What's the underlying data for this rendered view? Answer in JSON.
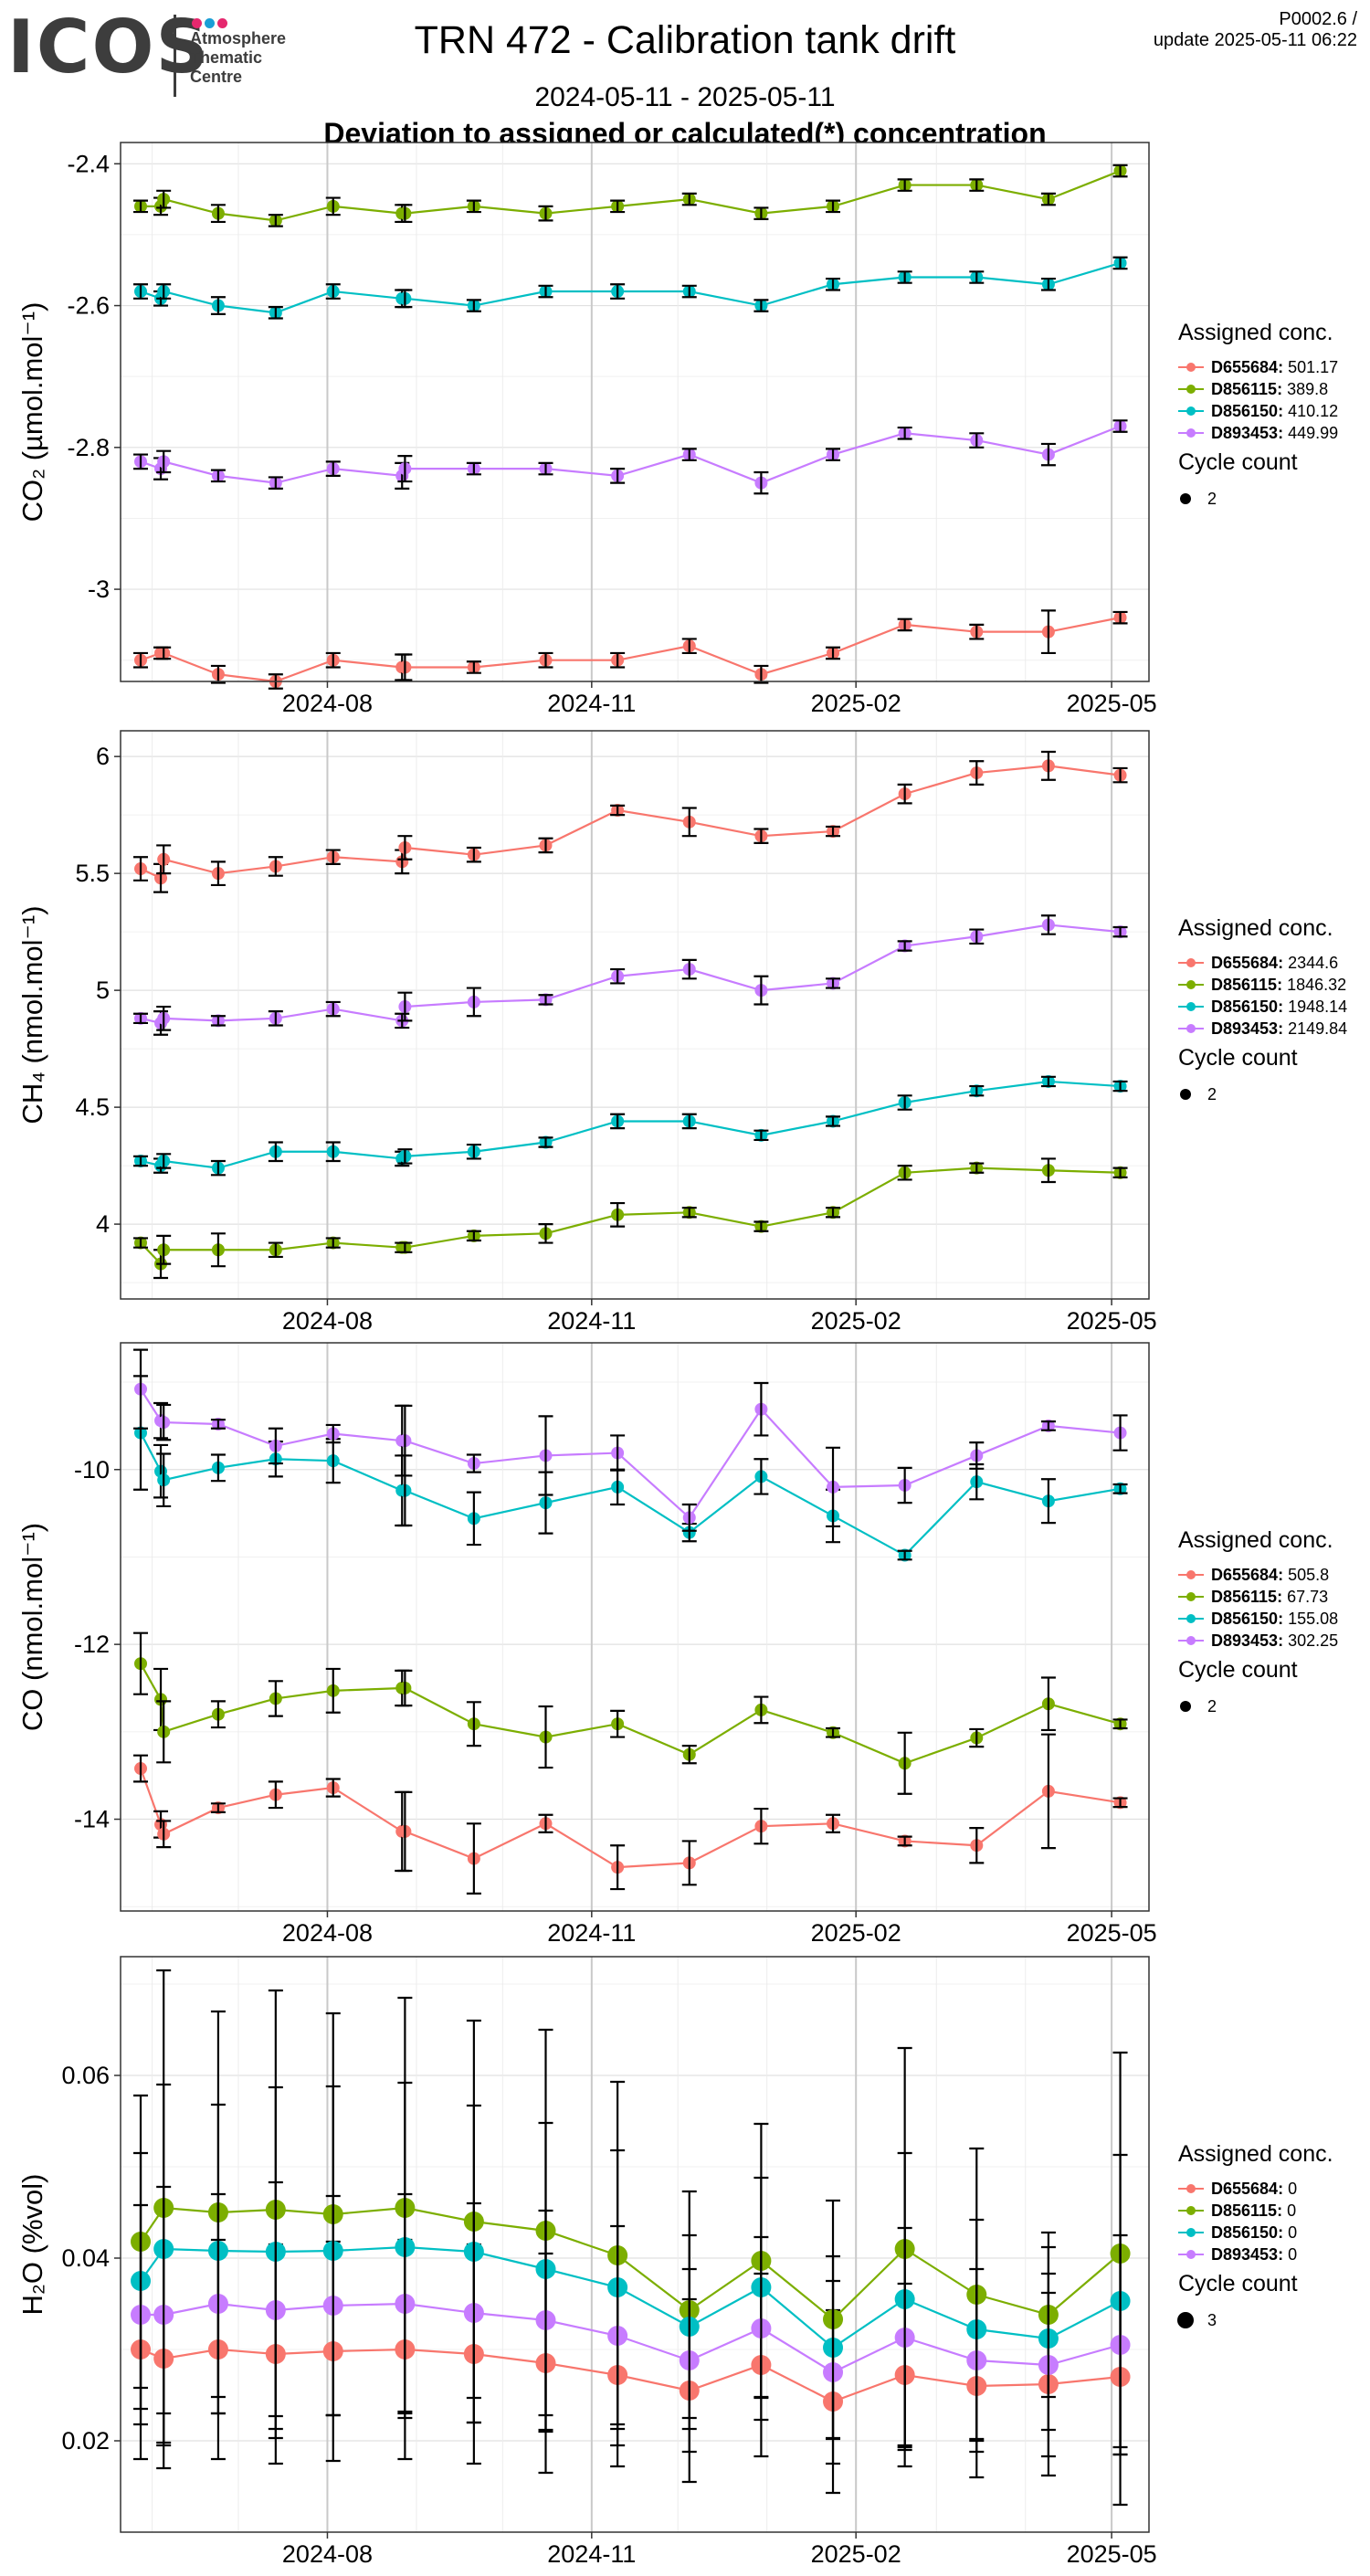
{
  "header": {
    "logo_text": "ICOS",
    "logo_lines": [
      "Atmosphere",
      "Thematic",
      "Centre"
    ],
    "logo_dot_colors": [
      "#e5286e",
      "#1a9fd6",
      "#e5286e"
    ],
    "version": "P0002.6 /",
    "update": "update  2025-05-11 06:22",
    "title": "TRN 472 - Calibration tank drift",
    "date_range": "2024-05-11 - 2025-05-11",
    "subtitle": "Deviation to assigned or calculated(*) concentration"
  },
  "colors": {
    "D655684": "#F8766D",
    "D856115": "#7CAE00",
    "D856150": "#00BFC4",
    "D893453": "#C77CFF"
  },
  "chart_data": [
    {
      "type": "line",
      "id": "co2",
      "ylabel": "CO₂ (µmol.mol⁻¹)",
      "x_ticks": [
        "2024-08",
        "2024-11",
        "2025-02",
        "2025-05"
      ],
      "x_range": [
        "2024-05-21",
        "2025-05-14"
      ],
      "ylim": [
        -3.13,
        -2.37
      ],
      "y_ticks": [
        -2.4,
        -2.6,
        -2.8,
        -3.0
      ],
      "legend_title": "Assigned conc.",
      "legend_entries": [
        "D655684: 501.17",
        "D856115: 389.8",
        "D856150: 410.12",
        "D893453: 449.99"
      ],
      "size_title": "Cycle count",
      "size_label": "2",
      "dates": [
        "2024-05-28",
        "2024-06-04",
        "2024-06-05",
        "2024-06-24",
        "2024-07-14",
        "2024-08-03",
        "2024-08-27",
        "2024-08-28",
        "2024-09-21",
        "2024-10-16",
        "2024-11-10",
        "2024-12-05",
        "2024-12-30",
        "2025-01-24",
        "2025-02-18",
        "2025-03-15",
        "2025-04-09",
        "2025-05-04"
      ],
      "series": [
        {
          "name": "D655684",
          "values": [
            -3.1,
            -3.09,
            -3.09,
            -3.12,
            -3.13,
            -3.1,
            -3.11,
            -3.11,
            -3.11,
            -3.1,
            -3.1,
            -3.08,
            -3.12,
            -3.09,
            -3.05,
            -3.06,
            -3.06,
            -3.04
          ],
          "err": [
            0.01,
            0.008,
            0.008,
            0.012,
            0.01,
            0.01,
            0.018,
            0.018,
            0.008,
            0.01,
            0.01,
            0.01,
            0.012,
            0.008,
            0.008,
            0.01,
            0.03,
            0.008
          ]
        },
        {
          "name": "D856115",
          "values": [
            -2.46,
            -2.46,
            -2.45,
            -2.47,
            -2.48,
            -2.46,
            -2.47,
            -2.47,
            -2.46,
            -2.47,
            -2.46,
            -2.45,
            -2.47,
            -2.46,
            -2.43,
            -2.43,
            -2.45,
            -2.41
          ],
          "err": [
            0.008,
            0.012,
            0.012,
            0.012,
            0.008,
            0.012,
            0.012,
            0.012,
            0.008,
            0.01,
            0.008,
            0.008,
            0.008,
            0.008,
            0.008,
            0.008,
            0.008,
            0.008
          ]
        },
        {
          "name": "D856150",
          "values": [
            -2.58,
            -2.59,
            -2.58,
            -2.6,
            -2.61,
            -2.58,
            -2.59,
            -2.59,
            -2.6,
            -2.58,
            -2.58,
            -2.58,
            -2.6,
            -2.57,
            -2.56,
            -2.56,
            -2.57,
            -2.54
          ],
          "err": [
            0.01,
            0.01,
            0.01,
            0.012,
            0.008,
            0.01,
            0.012,
            0.012,
            0.008,
            0.008,
            0.01,
            0.008,
            0.008,
            0.008,
            0.008,
            0.008,
            0.008,
            0.008
          ]
        },
        {
          "name": "D893453",
          "values": [
            -2.82,
            -2.83,
            -2.82,
            -2.84,
            -2.85,
            -2.83,
            -2.84,
            -2.83,
            -2.83,
            -2.83,
            -2.84,
            -2.81,
            -2.85,
            -2.81,
            -2.78,
            -2.79,
            -2.81,
            -2.77
          ],
          "err": [
            0.01,
            0.015,
            0.015,
            0.008,
            0.008,
            0.01,
            0.018,
            0.018,
            0.008,
            0.008,
            0.01,
            0.008,
            0.015,
            0.008,
            0.008,
            0.01,
            0.015,
            0.008
          ]
        }
      ]
    },
    {
      "type": "line",
      "id": "ch4",
      "ylabel": "CH₄ (nmol.mol⁻¹)",
      "x_ticks": [
        "2024-08",
        "2024-11",
        "2025-02",
        "2025-05"
      ],
      "x_range": [
        "2024-05-21",
        "2025-05-14"
      ],
      "ylim": [
        3.68,
        6.11
      ],
      "y_ticks": [
        6.0,
        5.5,
        5.0,
        4.5,
        4.0
      ],
      "legend_title": "Assigned conc.",
      "legend_entries": [
        "D655684: 2344.6",
        "D856115: 1846.32",
        "D856150: 1948.14",
        "D893453: 2149.84"
      ],
      "size_title": "Cycle count",
      "size_label": "2",
      "dates": [
        "2024-05-28",
        "2024-06-04",
        "2024-06-05",
        "2024-06-24",
        "2024-07-14",
        "2024-08-03",
        "2024-08-27",
        "2024-08-28",
        "2024-09-21",
        "2024-10-16",
        "2024-11-10",
        "2024-12-05",
        "2024-12-30",
        "2025-01-24",
        "2025-02-18",
        "2025-03-15",
        "2025-04-09",
        "2025-05-04"
      ],
      "series": [
        {
          "name": "D655684",
          "values": [
            5.52,
            5.48,
            5.56,
            5.5,
            5.53,
            5.57,
            5.55,
            5.61,
            5.58,
            5.62,
            5.77,
            5.72,
            5.66,
            5.68,
            5.84,
            5.93,
            5.96,
            5.92
          ],
          "err": [
            0.05,
            0.06,
            0.06,
            0.05,
            0.04,
            0.03,
            0.05,
            0.05,
            0.03,
            0.03,
            0.02,
            0.06,
            0.03,
            0.02,
            0.04,
            0.05,
            0.06,
            0.03
          ]
        },
        {
          "name": "D856115",
          "values": [
            3.92,
            3.83,
            3.89,
            3.89,
            3.89,
            3.92,
            3.9,
            3.9,
            3.95,
            3.96,
            4.04,
            4.05,
            3.99,
            4.05,
            4.22,
            4.24,
            4.23,
            4.22
          ],
          "err": [
            0.02,
            0.06,
            0.06,
            0.07,
            0.03,
            0.02,
            0.02,
            0.02,
            0.02,
            0.04,
            0.05,
            0.02,
            0.02,
            0.02,
            0.03,
            0.02,
            0.05,
            0.02
          ]
        },
        {
          "name": "D856150",
          "values": [
            4.27,
            4.25,
            4.27,
            4.24,
            4.31,
            4.31,
            4.28,
            4.29,
            4.31,
            4.35,
            4.44,
            4.44,
            4.38,
            4.44,
            4.52,
            4.57,
            4.61,
            4.59
          ],
          "err": [
            0.02,
            0.03,
            0.03,
            0.03,
            0.04,
            0.04,
            0.03,
            0.03,
            0.03,
            0.02,
            0.03,
            0.03,
            0.02,
            0.02,
            0.03,
            0.02,
            0.02,
            0.02
          ]
        },
        {
          "name": "D893453",
          "values": [
            4.88,
            4.86,
            4.88,
            4.87,
            4.88,
            4.92,
            4.87,
            4.93,
            4.95,
            4.96,
            5.06,
            5.09,
            5.0,
            5.03,
            5.19,
            5.23,
            5.28,
            5.25
          ],
          "err": [
            0.02,
            0.05,
            0.05,
            0.02,
            0.03,
            0.03,
            0.03,
            0.06,
            0.06,
            0.02,
            0.03,
            0.04,
            0.06,
            0.02,
            0.02,
            0.03,
            0.04,
            0.02
          ]
        }
      ]
    },
    {
      "type": "line",
      "id": "co",
      "ylabel": "CO (nmol.mol⁻¹)",
      "x_ticks": [
        "2024-08",
        "2024-11",
        "2025-02",
        "2025-05"
      ],
      "x_range": [
        "2024-05-21",
        "2025-05-14"
      ],
      "ylim": [
        -15.05,
        -8.55
      ],
      "y_ticks": [
        -10,
        -12,
        -14
      ],
      "legend_title": "Assigned conc.",
      "legend_entries": [
        "D655684: 505.8",
        "D856115: 67.73",
        "D856150: 155.08",
        "D893453: 302.25"
      ],
      "size_title": "Cycle count",
      "size_label": "2",
      "dates": [
        "2024-05-28",
        "2024-06-04",
        "2024-06-05",
        "2024-06-24",
        "2024-07-14",
        "2024-08-03",
        "2024-08-27",
        "2024-08-28",
        "2024-09-21",
        "2024-10-16",
        "2024-11-10",
        "2024-12-05",
        "2024-12-30",
        "2025-01-24",
        "2025-02-18",
        "2025-03-15",
        "2025-04-09",
        "2025-05-04"
      ],
      "series": [
        {
          "name": "D655684",
          "values": [
            -13.42,
            -14.06,
            -14.17,
            -13.87,
            -13.72,
            -13.64,
            -14.14,
            -14.14,
            -14.45,
            -14.05,
            -14.55,
            -14.5,
            -14.08,
            -14.05,
            -14.25,
            -14.3,
            -13.68,
            -13.81
          ],
          "err": [
            0.15,
            0.15,
            0.15,
            0.05,
            0.15,
            0.1,
            0.45,
            0.45,
            0.4,
            0.1,
            0.25,
            0.25,
            0.2,
            0.1,
            0.05,
            0.2,
            0.65,
            0.05
          ]
        },
        {
          "name": "D856115",
          "values": [
            -12.22,
            -12.63,
            -13.0,
            -12.8,
            -12.62,
            -12.53,
            -12.5,
            -12.5,
            -12.91,
            -13.06,
            -12.91,
            -13.26,
            -12.75,
            -13.01,
            -13.36,
            -13.07,
            -12.68,
            -12.91
          ],
          "err": [
            0.35,
            0.35,
            0.35,
            0.15,
            0.2,
            0.25,
            0.2,
            0.2,
            0.25,
            0.35,
            0.15,
            0.1,
            0.15,
            0.05,
            0.35,
            0.1,
            0.3,
            0.05
          ]
        },
        {
          "name": "D856150",
          "values": [
            -9.58,
            -10.02,
            -10.12,
            -9.98,
            -9.88,
            -9.9,
            -10.24,
            -10.24,
            -10.56,
            -10.38,
            -10.2,
            -10.72,
            -10.08,
            -10.53,
            -10.98,
            -10.14,
            -10.36,
            -10.22
          ],
          "err": [
            0.65,
            0.3,
            0.3,
            0.15,
            0.2,
            0.25,
            0.4,
            0.4,
            0.3,
            0.35,
            0.2,
            0.1,
            0.2,
            0.3,
            0.05,
            0.2,
            0.25,
            0.05
          ]
        },
        {
          "name": "D893453",
          "values": [
            -9.08,
            -9.44,
            -9.46,
            -9.48,
            -9.73,
            -9.59,
            -9.67,
            -9.67,
            -9.93,
            -9.84,
            -9.81,
            -10.55,
            -9.31,
            -10.2,
            -10.18,
            -9.84,
            -9.5,
            -9.58
          ],
          "err": [
            0.45,
            0.2,
            0.2,
            0.05,
            0.2,
            0.1,
            0.4,
            0.4,
            0.1,
            0.45,
            0.2,
            0.15,
            0.3,
            0.45,
            0.2,
            0.15,
            0.05,
            0.2
          ]
        }
      ]
    },
    {
      "type": "line",
      "id": "h2o",
      "ylabel": "H₂O (%vol)",
      "x_ticks": [
        "2024-08",
        "2024-11",
        "2025-02",
        "2025-05"
      ],
      "x_range": [
        "2024-05-21",
        "2025-05-14"
      ],
      "ylim": [
        0.01,
        0.073
      ],
      "y_ticks": [
        0.06,
        0.04,
        0.02
      ],
      "legend_title": "Assigned conc.",
      "legend_entries": [
        "D655684: 0",
        "D856115: 0",
        "D856150: 0",
        "D893453: 0"
      ],
      "size_title": "Cycle count",
      "size_label": "3",
      "dates": [
        "2024-05-28",
        "2024-06-05",
        "2024-06-24",
        "2024-07-14",
        "2024-08-03",
        "2024-08-28",
        "2024-09-21",
        "2024-10-16",
        "2024-11-10",
        "2024-12-05",
        "2024-12-30",
        "2025-01-24",
        "2025-02-18",
        "2025-03-15",
        "2025-04-09",
        "2025-05-04"
      ],
      "series": [
        {
          "name": "D655684",
          "values": [
            0.03,
            0.029,
            0.03,
            0.0295,
            0.0298,
            0.03,
            0.0295,
            0.0285,
            0.0272,
            0.0255,
            0.0283,
            0.0243,
            0.0272,
            0.026,
            0.0262,
            0.027
          ],
          "err": [
            0.012,
            0.012,
            0.012,
            0.012,
            0.012,
            0.012,
            0.012,
            0.012,
            0.01,
            0.01,
            0.01,
            0.01,
            0.01,
            0.01,
            0.01,
            0.014
          ]
        },
        {
          "name": "D856115",
          "values": [
            0.0418,
            0.0455,
            0.045,
            0.0453,
            0.0448,
            0.0455,
            0.044,
            0.043,
            0.0403,
            0.0343,
            0.0397,
            0.0333,
            0.041,
            0.036,
            0.0338,
            0.0405
          ],
          "err": [
            0.016,
            0.026,
            0.022,
            0.024,
            0.022,
            0.023,
            0.022,
            0.022,
            0.019,
            0.013,
            0.015,
            0.013,
            0.022,
            0.016,
            0.009,
            0.022
          ]
        },
        {
          "name": "D856150",
          "values": [
            0.0375,
            0.041,
            0.0408,
            0.0407,
            0.0408,
            0.0412,
            0.0407,
            0.0388,
            0.0368,
            0.0325,
            0.0368,
            0.0302,
            0.0355,
            0.0322,
            0.0312,
            0.0353
          ],
          "err": [
            0.014,
            0.018,
            0.016,
            0.018,
            0.018,
            0.018,
            0.016,
            0.016,
            0.015,
            0.01,
            0.012,
            0.01,
            0.016,
            0.012,
            0.01,
            0.016
          ]
        },
        {
          "name": "D893453",
          "values": [
            0.0338,
            0.0338,
            0.035,
            0.0343,
            0.0348,
            0.035,
            0.034,
            0.0332,
            0.0315,
            0.0288,
            0.0323,
            0.0275,
            0.0313,
            0.0288,
            0.0283,
            0.0305
          ],
          "err": [
            0.012,
            0.014,
            0.012,
            0.014,
            0.012,
            0.012,
            0.012,
            0.012,
            0.012,
            0.01,
            0.01,
            0.01,
            0.012,
            0.01,
            0.01,
            0.012
          ]
        }
      ]
    }
  ]
}
